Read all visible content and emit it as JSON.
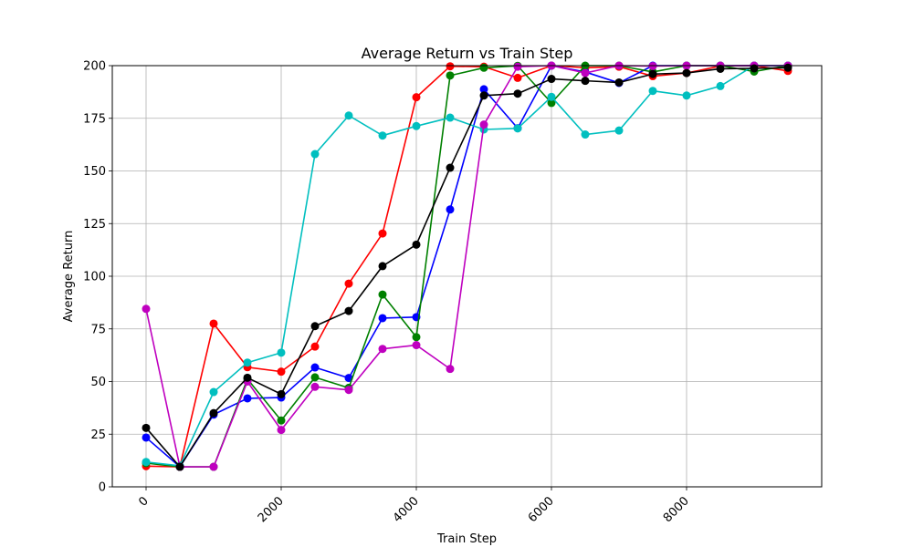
{
  "chart_data": {
    "type": "line",
    "title": "Average Return vs Train Step",
    "xlabel": "Train Step",
    "ylabel": "Average Return",
    "xlim": [
      -500,
      10000
    ],
    "ylim": [
      0,
      200
    ],
    "xticks": [
      0,
      2000,
      4000,
      6000,
      8000
    ],
    "yticks": [
      0,
      25,
      50,
      75,
      100,
      125,
      150,
      175,
      200
    ],
    "grid": true,
    "legend": "none",
    "x": [
      0,
      500,
      1000,
      1500,
      2000,
      2500,
      3000,
      3500,
      4000,
      4500,
      5000,
      5500,
      6000,
      6500,
      7000,
      7500,
      8000,
      8500,
      9000,
      9500
    ],
    "series": [
      {
        "color": "#ff0000",
        "values": [
          9.8,
          9.5,
          77.5,
          56.8,
          54.7,
          66.6,
          96.5,
          120.3,
          185.0,
          199.7,
          199.5,
          194.2,
          200.0,
          199.0,
          199.5,
          195.0,
          196.5,
          199.8,
          200.0,
          197.5
        ]
      },
      {
        "color": "#0000ff",
        "values": [
          23.4,
          9.5,
          34.3,
          42.0,
          42.4,
          56.7,
          51.7,
          80.1,
          80.6,
          131.7,
          188.8,
          170.3,
          200.0,
          197.0,
          191.8,
          200.0,
          200.0,
          200.0,
          200.0,
          200.0
        ]
      },
      {
        "color": "#008000",
        "values": [
          11.3,
          9.5,
          9.5,
          51.2,
          31.5,
          52.0,
          47.0,
          91.3,
          71.1,
          195.3,
          199.0,
          199.9,
          182.3,
          200.0,
          200.0,
          197.0,
          200.0,
          200.0,
          197.2,
          200.0
        ]
      },
      {
        "color": "#00bfbf",
        "values": [
          11.8,
          10.0,
          45.0,
          59.0,
          63.7,
          158.0,
          176.3,
          166.8,
          171.3,
          175.3,
          169.7,
          170.2,
          185.2,
          167.3,
          169.2,
          188.0,
          185.8,
          190.3,
          200.0,
          200.0
        ]
      },
      {
        "color": "#bf00bf",
        "values": [
          84.5,
          9.5,
          9.5,
          50.0,
          27.0,
          47.5,
          46.0,
          65.5,
          67.3,
          56.0,
          172.0,
          199.5,
          200.0,
          196.5,
          200.0,
          199.8,
          200.0,
          200.0,
          200.0,
          200.0
        ]
      },
      {
        "color": "#000000",
        "values": [
          28.0,
          9.5,
          35.0,
          51.8,
          44.0,
          76.3,
          83.5,
          104.8,
          115.0,
          151.5,
          185.8,
          186.7,
          193.7,
          192.8,
          192.0,
          196.0,
          196.5,
          198.5,
          198.7,
          199.0
        ]
      }
    ]
  }
}
